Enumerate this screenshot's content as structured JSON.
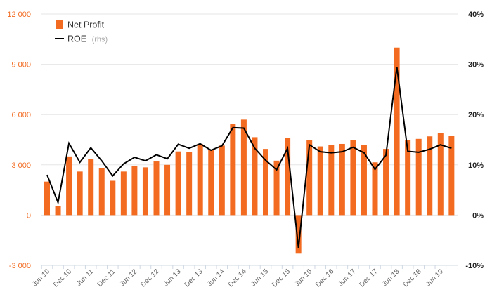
{
  "chart_data": {
    "type": "bar",
    "x": [
      "Jun 10",
      "Sep 10",
      "Dec 10",
      "Mar 11",
      "Jun 11",
      "Sep 11",
      "Dec 11",
      "Mar 12",
      "Jun 12",
      "Sep 12",
      "Dec 12",
      "Mar 13",
      "Jun 13",
      "Sep 13",
      "Dec 13",
      "Mar 14",
      "Jun 14",
      "Sep 14",
      "Dec 14",
      "Mar 15",
      "Jun 15",
      "Sep 15",
      "Dec 15",
      "Mar 16",
      "Jun 16",
      "Sep 16",
      "Dec 16",
      "Mar 17",
      "Jun 17",
      "Sep 17",
      "Dec 17",
      "Mar 18",
      "Jun 18",
      "Sep 18",
      "Dec 18",
      "Mar 19",
      "Jun 19",
      "Sep 19"
    ],
    "x_tick_labels": [
      "Jun 10",
      "Dec 10",
      "Jun 11",
      "Dec 11",
      "Jun 12",
      "Dec 12",
      "Jun 13",
      "Dec 13",
      "Jun 14",
      "Dec 14",
      "Jun 15",
      "Dec 15",
      "Jun 16",
      "Dec 16",
      "Jun 17",
      "Dec 17",
      "Jun 18",
      "Dec 18",
      "Jun 19"
    ],
    "series": [
      {
        "name": "Net Profit",
        "type": "bar",
        "axis": "left",
        "color": "#f26b21",
        "values": [
          2000,
          550,
          3500,
          2600,
          3350,
          2800,
          2050,
          2600,
          2950,
          2850,
          3200,
          3000,
          3800,
          3750,
          4250,
          3900,
          4150,
          5450,
          5700,
          4650,
          3950,
          3250,
          4600,
          -2300,
          4500,
          4100,
          4200,
          4250,
          4500,
          4200,
          3150,
          3950,
          10000,
          4500,
          4550,
          4700,
          4900,
          4750
        ]
      },
      {
        "name": "ROE",
        "name_suffix": "(rhs)",
        "type": "line",
        "axis": "right",
        "color": "#000000",
        "values": [
          8.0,
          2.5,
          14.3,
          10.5,
          13.4,
          10.8,
          7.8,
          10.2,
          11.5,
          10.8,
          12.0,
          11.2,
          14.1,
          13.3,
          14.2,
          12.9,
          13.8,
          17.4,
          17.3,
          13.3,
          10.9,
          9.0,
          13.3,
          -6.5,
          14.0,
          12.6,
          12.4,
          12.6,
          13.5,
          12.4,
          9.1,
          11.9,
          29.5,
          12.7,
          12.5,
          13.1,
          14.0,
          13.3
        ]
      }
    ],
    "y_left": {
      "ticks": [
        -3000,
        0,
        3000,
        6000,
        9000,
        12000
      ],
      "tick_labels": [
        "-3 000",
        "0",
        "3 000",
        "6 000",
        "9 000",
        "12 000"
      ],
      "lim": [
        -3000,
        12000
      ]
    },
    "y_right": {
      "ticks": [
        -10,
        0,
        10,
        20,
        30,
        40
      ],
      "tick_labels": [
        "-10%",
        "0%",
        "10%",
        "20%",
        "30%",
        "40%"
      ],
      "lim": [
        -10,
        40
      ]
    },
    "grid": true,
    "legend": "top-left"
  }
}
